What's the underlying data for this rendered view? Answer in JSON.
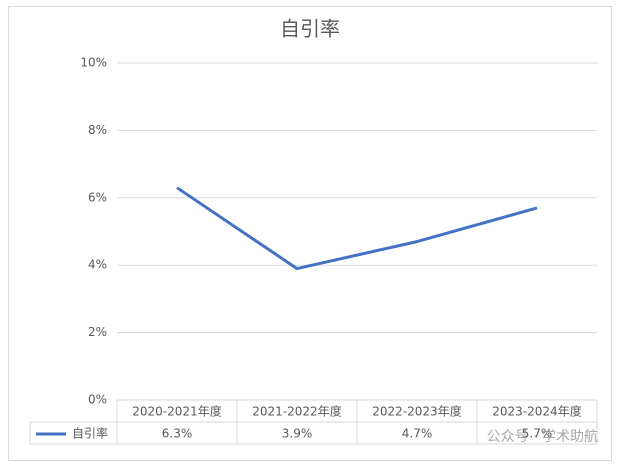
{
  "chart_data": {
    "type": "line",
    "title": "自引率",
    "categories": [
      "2020-2021年度",
      "2021-2022年度",
      "2022-2023年度",
      "2023-2024年度"
    ],
    "series": [
      {
        "name": "自引率",
        "color": "#4472c4",
        "values": [
          6.3,
          3.9,
          4.7,
          5.7
        ],
        "value_labels": [
          "6.3%",
          "3.9%",
          "4.7%",
          "5.7%"
        ]
      }
    ],
    "ylim": [
      0,
      10
    ],
    "yticks": [
      {
        "value": 0,
        "label": "0%"
      },
      {
        "value": 2,
        "label": "2%"
      },
      {
        "value": 4,
        "label": "4%"
      },
      {
        "value": 6,
        "label": "6%"
      },
      {
        "value": 8,
        "label": "8%"
      },
      {
        "value": 10,
        "label": "10%"
      }
    ],
    "grid": true,
    "data_table": true,
    "watermark": "公众号 · 学术助航"
  }
}
